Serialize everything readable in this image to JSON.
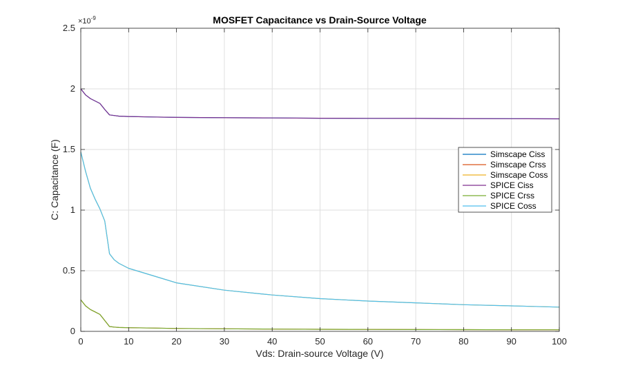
{
  "chart_data": {
    "type": "line",
    "title": "MOSFET Capacitance vs Drain-Source Voltage",
    "xlabel": "Vds: Drain-source Voltage (V)",
    "ylabel": "C: Capacitance (F)",
    "y_exponent_base": "×10",
    "y_exponent_power": "-9",
    "xlim": [
      0,
      100
    ],
    "ylim": [
      0,
      2.5
    ],
    "x_ticks": [
      0,
      10,
      20,
      30,
      40,
      50,
      60,
      70,
      80,
      90,
      100
    ],
    "y_ticks": [
      0,
      0.5,
      1,
      1.5,
      2,
      2.5
    ],
    "y_tick_labels": [
      "0",
      "0.5",
      "1",
      "1.5",
      "2",
      "2.5"
    ],
    "grid": true,
    "legend_position": "right",
    "series": [
      {
        "name": "Simscape Ciss",
        "color": "#0072bd",
        "x": [
          0,
          1,
          2,
          3,
          4,
          5,
          6,
          7,
          8,
          10,
          15,
          20,
          30,
          40,
          50,
          60,
          70,
          80,
          90,
          100
        ],
        "y": [
          2.0,
          1.95,
          1.92,
          1.9,
          1.88,
          1.83,
          1.785,
          1.78,
          1.775,
          1.772,
          1.768,
          1.765,
          1.762,
          1.76,
          1.758,
          1.757,
          1.756,
          1.755,
          1.754,
          1.753
        ]
      },
      {
        "name": "Simscape Crss",
        "color": "#d95319",
        "x": [
          0,
          1,
          2,
          3,
          4,
          5,
          6,
          7,
          8,
          10,
          15,
          20,
          30,
          40,
          50,
          60,
          70,
          80,
          90,
          100
        ],
        "y": [
          0.26,
          0.21,
          0.18,
          0.16,
          0.14,
          0.09,
          0.04,
          0.035,
          0.032,
          0.03,
          0.027,
          0.024,
          0.021,
          0.019,
          0.017,
          0.016,
          0.015,
          0.014,
          0.013,
          0.013
        ]
      },
      {
        "name": "Simscape Coss",
        "color": "#edb120",
        "x": [
          0,
          1,
          2,
          3,
          4,
          5,
          6,
          7,
          8,
          10,
          15,
          20,
          30,
          40,
          50,
          60,
          70,
          80,
          90,
          100
        ],
        "y": [
          1.48,
          1.32,
          1.18,
          1.09,
          1.01,
          0.91,
          0.64,
          0.59,
          0.56,
          0.52,
          0.46,
          0.4,
          0.34,
          0.3,
          0.27,
          0.25,
          0.235,
          0.22,
          0.21,
          0.2
        ]
      },
      {
        "name": "SPICE Ciss",
        "color": "#7e2f8e",
        "x": [
          0,
          1,
          2,
          3,
          4,
          5,
          6,
          7,
          8,
          10,
          15,
          20,
          30,
          40,
          50,
          60,
          70,
          80,
          90,
          100
        ],
        "y": [
          2.0,
          1.95,
          1.92,
          1.9,
          1.88,
          1.83,
          1.785,
          1.78,
          1.775,
          1.772,
          1.768,
          1.765,
          1.762,
          1.76,
          1.758,
          1.757,
          1.756,
          1.755,
          1.754,
          1.753
        ]
      },
      {
        "name": "SPICE Crss",
        "color": "#77ac30",
        "x": [
          0,
          1,
          2,
          3,
          4,
          5,
          6,
          7,
          8,
          10,
          15,
          20,
          30,
          40,
          50,
          60,
          70,
          80,
          90,
          100
        ],
        "y": [
          0.26,
          0.21,
          0.18,
          0.16,
          0.14,
          0.09,
          0.04,
          0.035,
          0.032,
          0.03,
          0.027,
          0.024,
          0.021,
          0.019,
          0.017,
          0.016,
          0.015,
          0.014,
          0.013,
          0.013
        ]
      },
      {
        "name": "SPICE Coss",
        "color": "#4dbeee",
        "x": [
          0,
          1,
          2,
          3,
          4,
          5,
          6,
          7,
          8,
          10,
          15,
          20,
          30,
          40,
          50,
          60,
          70,
          80,
          90,
          100
        ],
        "y": [
          1.48,
          1.32,
          1.18,
          1.09,
          1.01,
          0.91,
          0.64,
          0.59,
          0.56,
          0.52,
          0.46,
          0.4,
          0.34,
          0.3,
          0.27,
          0.25,
          0.235,
          0.22,
          0.21,
          0.2
        ]
      }
    ]
  }
}
